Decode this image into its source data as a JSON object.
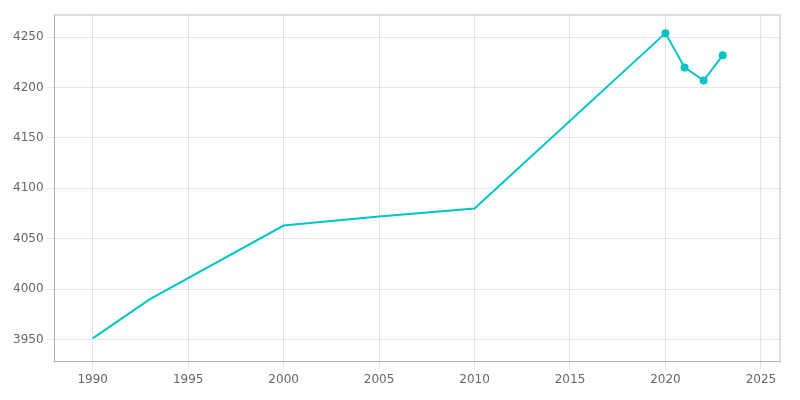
{
  "chart_data": {
    "type": "line",
    "x": [
      1990,
      1993,
      2000,
      2005,
      2010,
      2020,
      2021,
      2022,
      2023
    ],
    "series": [
      {
        "color": "#00C5C5",
        "line_style": "solid",
        "values": [
          3951,
          3990,
          4063,
          4072,
          4080,
          4254,
          null,
          null,
          null
        ]
      },
      {
        "color": "#00C5C5",
        "line_style": "solid",
        "marker": "circle",
        "values": [
          null,
          null,
          null,
          null,
          null,
          4254,
          4220,
          4207,
          4232
        ]
      }
    ],
    "xlim": [
      1988,
      2026
    ],
    "ylim": [
      3928,
      4272
    ],
    "xticks": [
      1990,
      1995,
      2000,
      2005,
      2010,
      2015,
      2020,
      2025
    ],
    "yticks": [
      3950,
      4000,
      4050,
      4100,
      4150,
      4200,
      4250
    ],
    "grid": true
  }
}
